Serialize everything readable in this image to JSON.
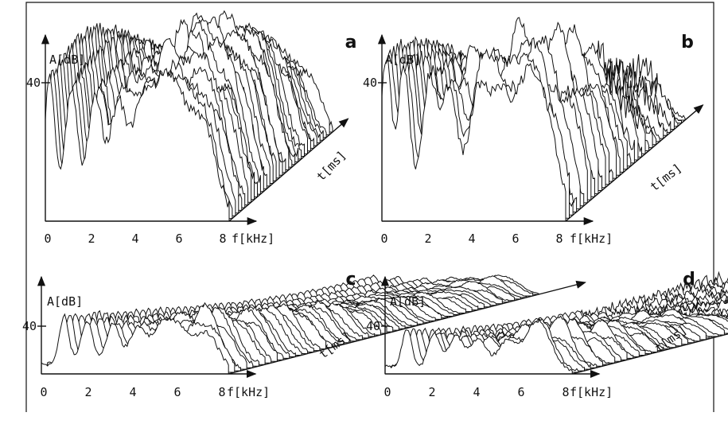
{
  "chart_data": [
    {
      "id": "a",
      "type": "waterfall",
      "panel_label": "a",
      "ylabel": "A[dB]",
      "xlabel": "f[kHz]",
      "tlabel": "t[ms]",
      "yticks": [
        40
      ],
      "xticks": [
        0,
        2,
        4,
        6,
        8
      ],
      "slices": 34,
      "formants_khz": [
        0.2,
        1.2,
        2.3,
        3.3,
        4.3,
        5.2,
        6.1,
        7.2
      ],
      "peak_level_db": 46,
      "colors": {
        "trace": "#111111",
        "background": "#ffffff"
      }
    },
    {
      "id": "b",
      "type": "waterfall",
      "panel_label": "b",
      "ylabel": "A[dB]",
      "xlabel": "f[kHz]",
      "tlabel": "t[ms]",
      "yticks": [
        40
      ],
      "xticks": [
        0,
        2,
        4,
        6,
        8
      ],
      "slices": 34,
      "formants_khz": [
        0.2,
        1.0,
        2.1,
        3.1,
        4.2,
        5.2,
        6.2,
        7.3
      ],
      "peak_level_db": 40,
      "colors": {
        "trace": "#111111",
        "background": "#ffffff"
      }
    },
    {
      "id": "c",
      "type": "waterfall",
      "panel_label": "c",
      "ylabel": "A[dB]",
      "xlabel": "f[kHz]",
      "tlabel": "t[ms]",
      "yticks": [
        40
      ],
      "xticks": [
        0,
        2,
        4,
        6,
        8
      ],
      "slices": 52,
      "formants_khz": [
        1.0,
        2.1,
        3.2,
        4.3,
        5.3,
        6.4,
        7.3
      ],
      "peak_level_db": 40,
      "colors": {
        "trace": "#111111",
        "background": "#ffffff"
      }
    },
    {
      "id": "d",
      "type": "waterfall",
      "panel_label": "d",
      "ylabel": "A[dB]",
      "xlabel": "f[kHz]",
      "tlabel": "t[ms]",
      "yticks": [
        40
      ],
      "xticks": [
        0,
        2,
        4,
        6,
        8
      ],
      "slices": 52,
      "formants_khz": [
        1.0,
        2.1,
        3.2,
        4.3,
        5.3,
        6.4,
        7.3
      ],
      "peak_level_db": 38,
      "colors": {
        "trace": "#111111",
        "background": "#ffffff"
      }
    }
  ]
}
